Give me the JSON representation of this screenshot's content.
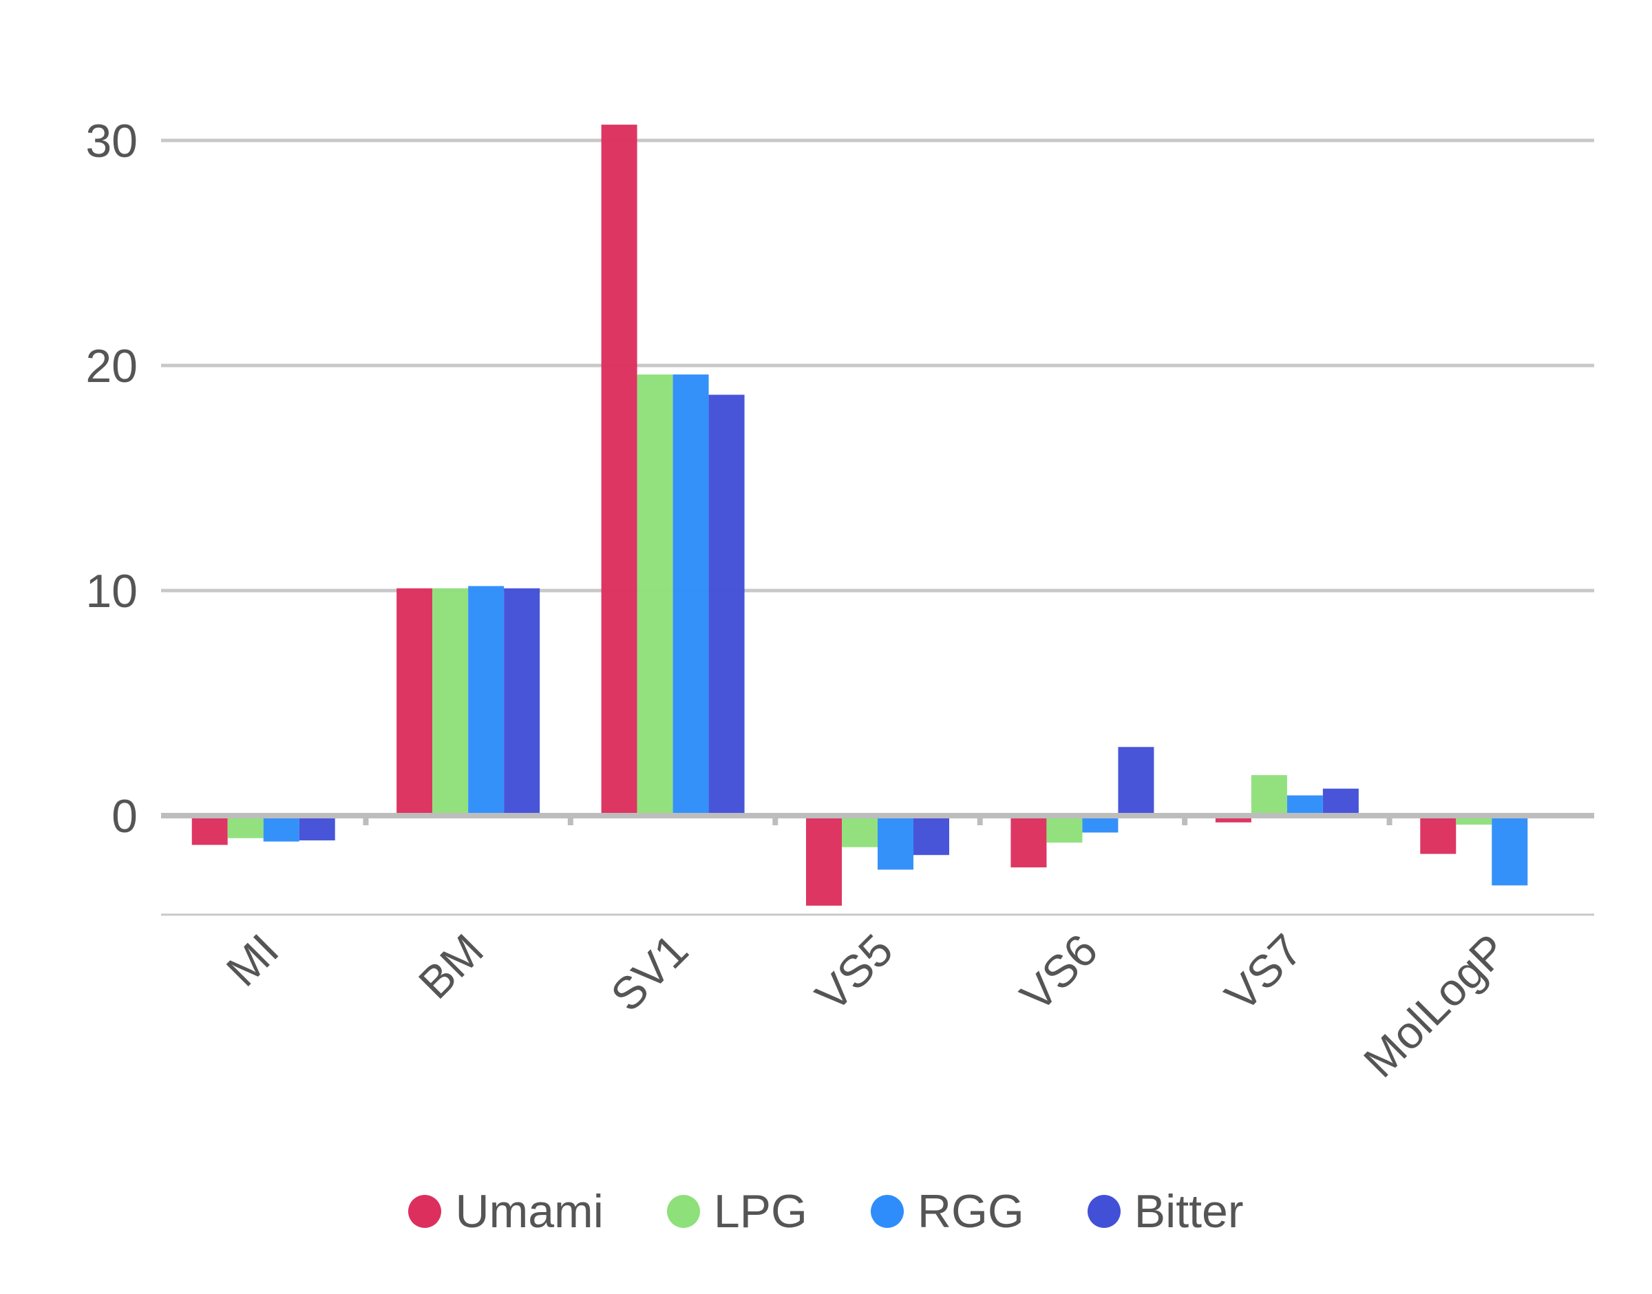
{
  "chart_data": {
    "type": "bar",
    "categories": [
      "MI",
      "BM",
      "SV1",
      "VS5",
      "VS6",
      "VS7",
      "MolLogP"
    ],
    "series": [
      {
        "name": "Umami",
        "color": "#dc2f5e",
        "values": [
          -1.3,
          10.1,
          30.7,
          -4.0,
          -2.3,
          -0.3,
          -1.7
        ]
      },
      {
        "name": "LPG",
        "color": "#8ee07a",
        "values": [
          -1.0,
          10.1,
          19.6,
          -1.4,
          -1.2,
          1.8,
          -0.4
        ]
      },
      {
        "name": "RGG",
        "color": "#2e8dfa",
        "values": [
          -1.15,
          10.2,
          19.6,
          -2.4,
          -0.75,
          0.9,
          -3.1
        ]
      },
      {
        "name": "Bitter",
        "color": "#4250d8",
        "values": [
          -1.1,
          10.1,
          18.7,
          -1.75,
          3.05,
          1.2,
          -0.1
        ]
      }
    ],
    "y_ticks": [
      "0",
      "10",
      "20",
      "30"
    ],
    "ylim": [
      -4.4,
      32
    ],
    "grid": true,
    "legend_position": "bottom",
    "title": "",
    "xlabel": "",
    "ylabel": ""
  }
}
